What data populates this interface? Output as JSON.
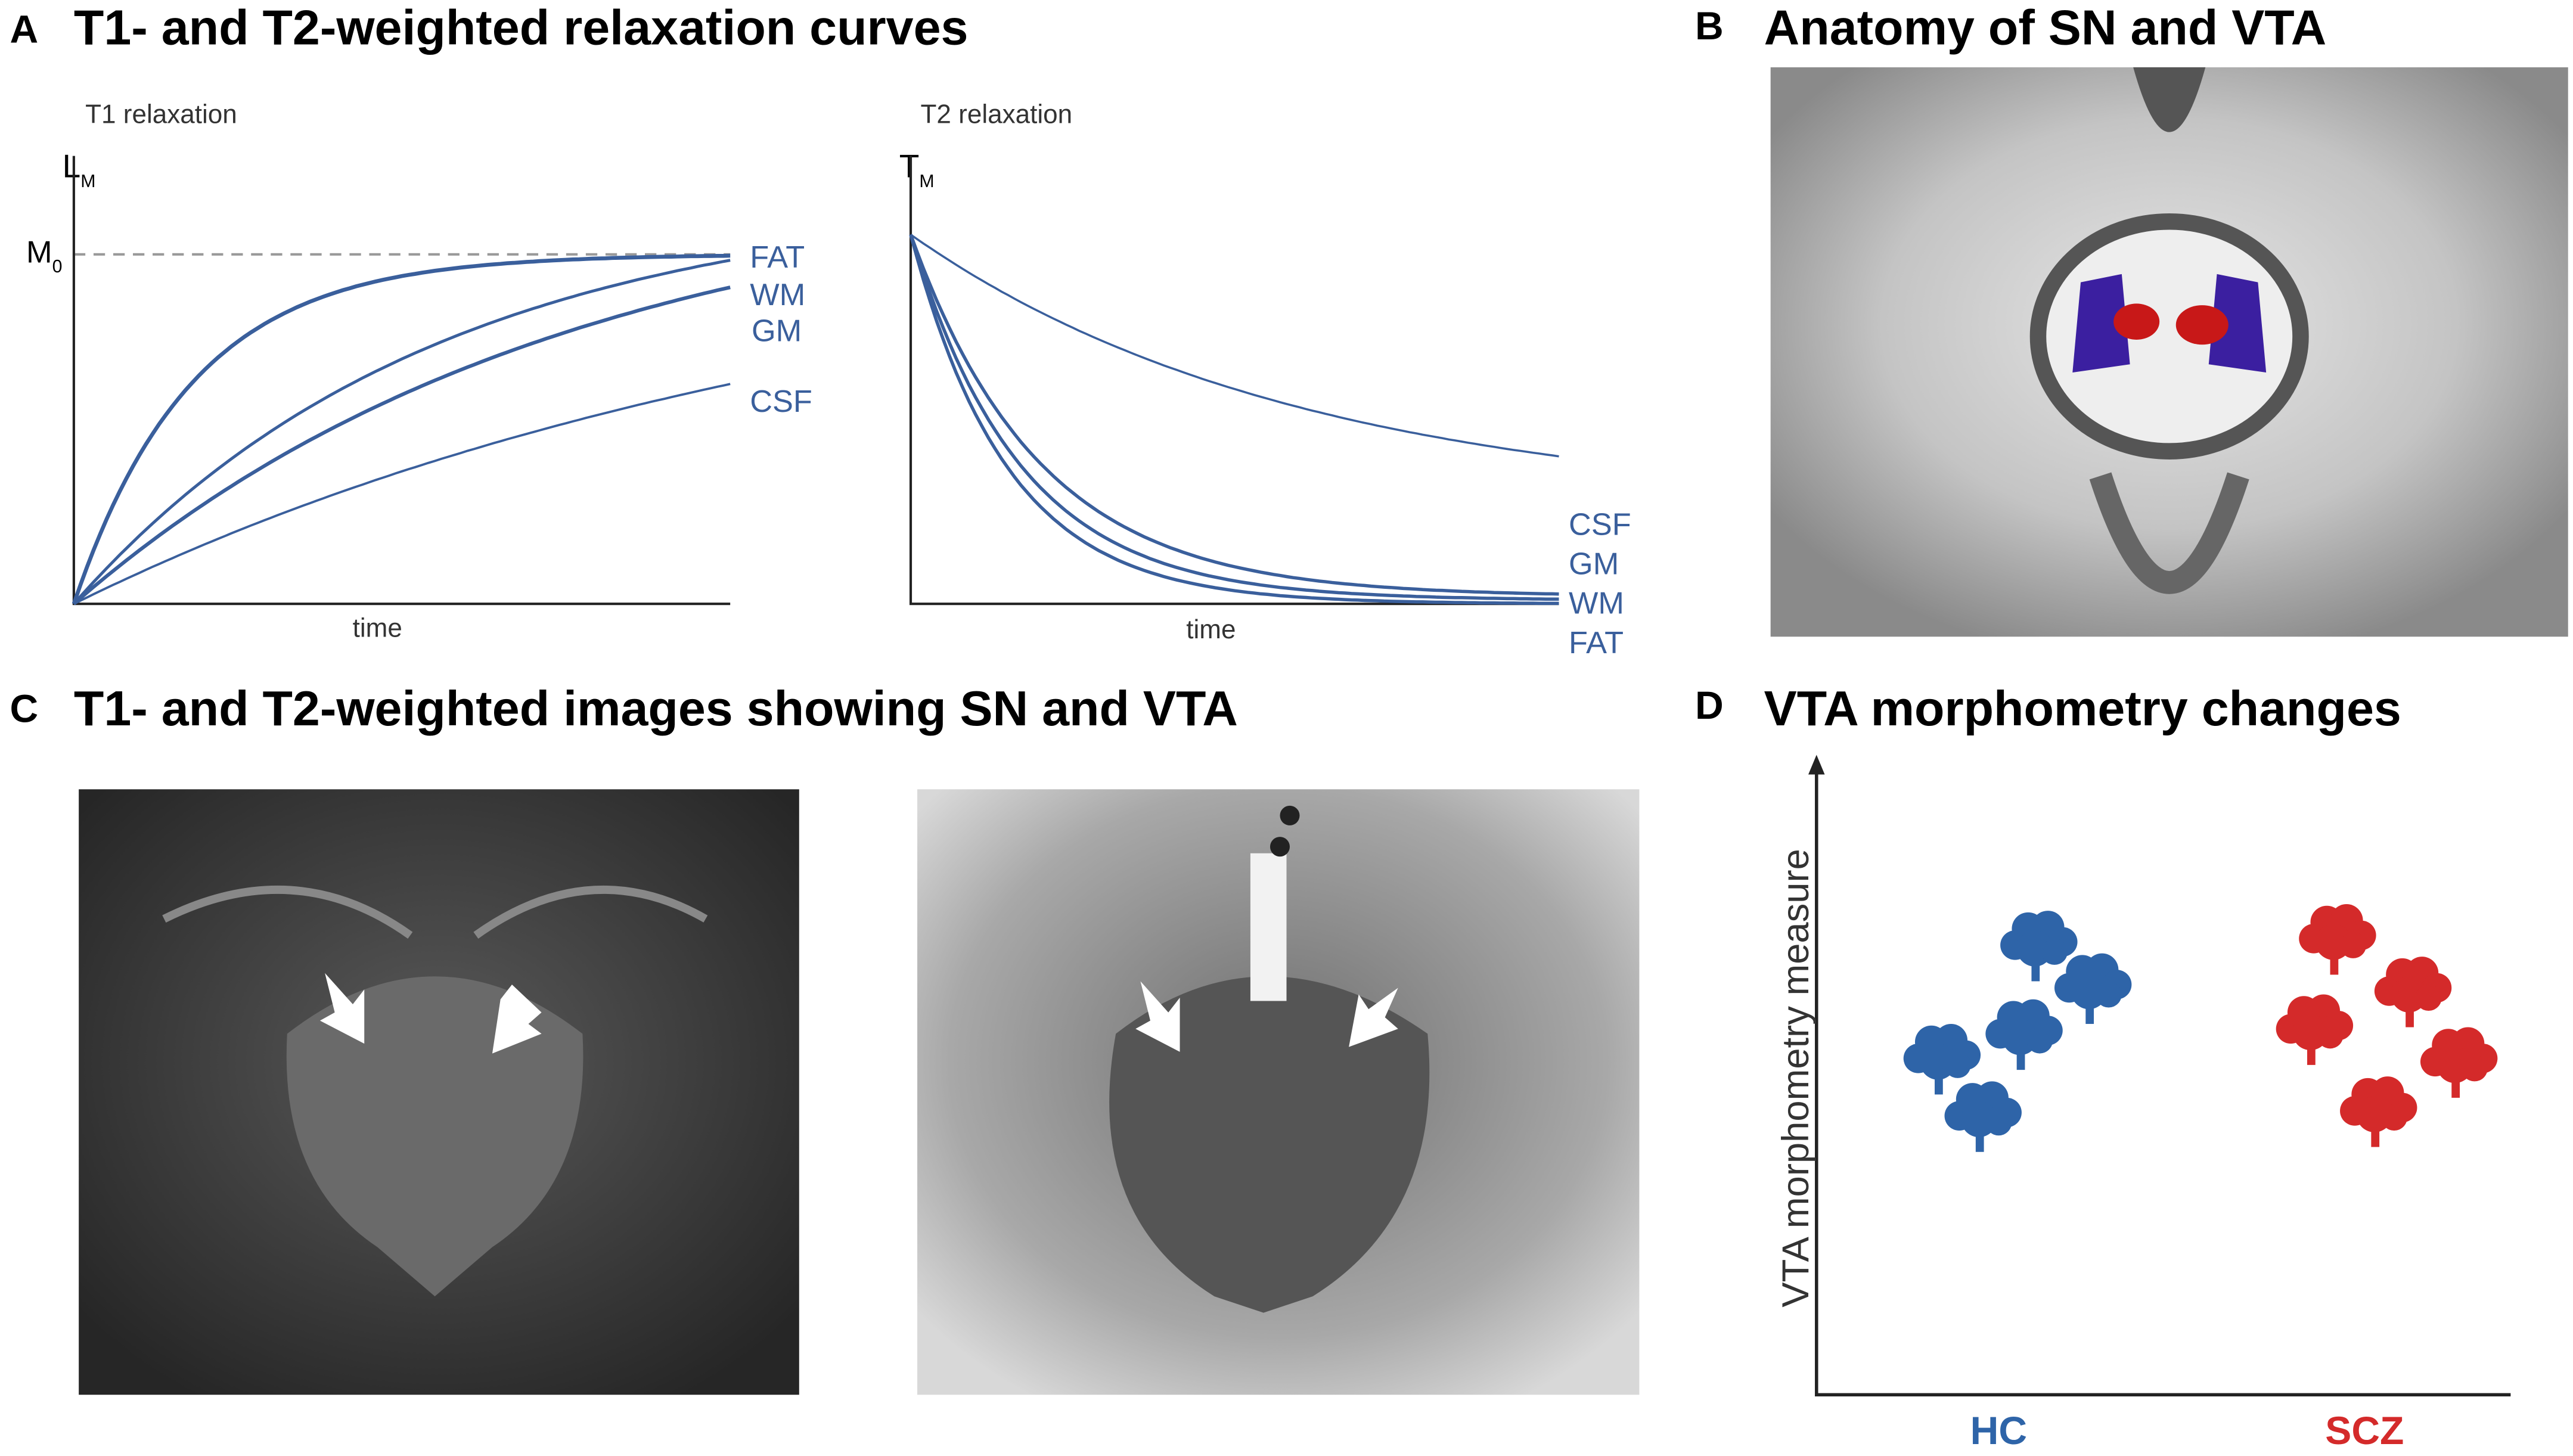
{
  "panels": [
    {
      "letter": "A",
      "title": "T1- and T2-weighted relaxation curves",
      "plots": [
        {
          "title": "T1 relaxation",
          "y_label": "L",
          "y_label_sub": "M",
          "level_label": "M",
          "level_label_sub": "0",
          "x_label": "time",
          "curves": [
            "FAT",
            "WM",
            "GM",
            "CSF"
          ]
        },
        {
          "title": "T2 relaxation",
          "y_label": "T",
          "y_label_sub": "M",
          "x_label": "time",
          "curves": [
            "CSF",
            "GM",
            "WM",
            "FAT"
          ]
        }
      ]
    },
    {
      "letter": "B",
      "title": "Anatomy of SN and VTA"
    },
    {
      "letter": "C",
      "title": "T1- and T2-weighted images showing SN and VTA"
    },
    {
      "letter": "D",
      "title": "VTA morphometry changes",
      "y_label": "VTA morphometry measure",
      "groups": [
        "HC",
        "SCZ"
      ]
    }
  ]
}
